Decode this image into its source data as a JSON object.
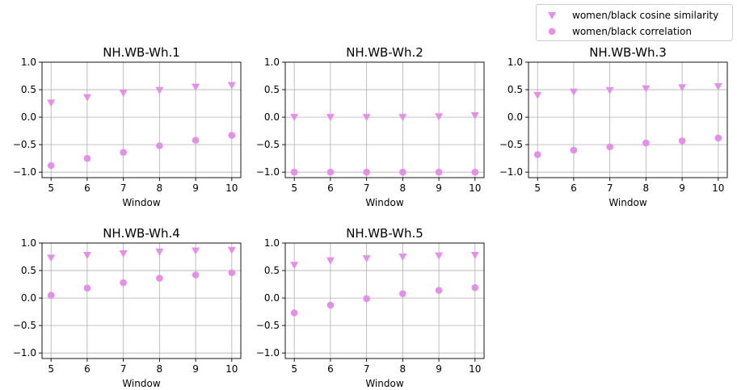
{
  "colors": {
    "marker": "#e58fe8",
    "grid": "#b0b0b0",
    "axis": "#000000"
  },
  "legend": {
    "entries": [
      {
        "label": "women/black cosine similarity",
        "marker": "triangle-down"
      },
      {
        "label": "women/black correlation",
        "marker": "circle"
      }
    ]
  },
  "chart_data": [
    {
      "type": "scatter",
      "title": "NH.WB-Wh.1",
      "xlabel": "Window",
      "ylabel": "",
      "x": [
        5,
        6,
        7,
        8,
        9,
        10
      ],
      "xlim": [
        4.75,
        10.25
      ],
      "ylim": [
        -1.1,
        1.0
      ],
      "xticks": [
        "5",
        "6",
        "7",
        "8",
        "9",
        "10"
      ],
      "yticks": [
        "1.0",
        "0.5",
        "0.0",
        "−0.5",
        "−1.0"
      ],
      "grid": true,
      "series": [
        {
          "name": "women/black cosine similarity",
          "marker": "triangle-down",
          "values": [
            0.26,
            0.36,
            0.44,
            0.49,
            0.55,
            0.58
          ]
        },
        {
          "name": "women/black correlation",
          "marker": "circle",
          "values": [
            -0.88,
            -0.75,
            -0.64,
            -0.52,
            -0.42,
            -0.33
          ]
        }
      ]
    },
    {
      "type": "scatter",
      "title": "NH.WB-Wh.2",
      "xlabel": "Window",
      "ylabel": "",
      "x": [
        5,
        6,
        7,
        8,
        9,
        10
      ],
      "xlim": [
        4.75,
        10.25
      ],
      "ylim": [
        -1.1,
        1.0
      ],
      "xticks": [
        "5",
        "6",
        "7",
        "8",
        "9",
        "10"
      ],
      "yticks": [
        "1.0",
        "0.5",
        "0.0",
        "−0.5",
        "−1.0"
      ],
      "grid": true,
      "series": [
        {
          "name": "women/black cosine similarity",
          "marker": "triangle-down",
          "values": [
            0.0,
            0.0,
            0.0,
            0.0,
            0.01,
            0.03
          ]
        },
        {
          "name": "women/black correlation",
          "marker": "circle",
          "values": [
            -1.0,
            -1.0,
            -1.0,
            -1.0,
            -1.0,
            -1.0
          ]
        }
      ]
    },
    {
      "type": "scatter",
      "title": "NH.WB-Wh.3",
      "xlabel": "Window",
      "ylabel": "",
      "x": [
        5,
        6,
        7,
        8,
        9,
        10
      ],
      "xlim": [
        4.75,
        10.25
      ],
      "ylim": [
        -1.1,
        1.0
      ],
      "xticks": [
        "5",
        "6",
        "7",
        "8",
        "9",
        "10"
      ],
      "yticks": [
        "1.0",
        "0.5",
        "0.0",
        "−0.5",
        "−1.0"
      ],
      "grid": true,
      "series": [
        {
          "name": "women/black cosine similarity",
          "marker": "triangle-down",
          "values": [
            0.4,
            0.46,
            0.49,
            0.52,
            0.54,
            0.56
          ]
        },
        {
          "name": "women/black correlation",
          "marker": "circle",
          "values": [
            -0.68,
            -0.6,
            -0.54,
            -0.47,
            -0.43,
            -0.38
          ]
        }
      ]
    },
    {
      "type": "scatter",
      "title": "NH.WB-Wh.4",
      "xlabel": "Window",
      "ylabel": "",
      "x": [
        5,
        6,
        7,
        8,
        9,
        10
      ],
      "xlim": [
        4.75,
        10.25
      ],
      "ylim": [
        -1.1,
        1.0
      ],
      "xticks": [
        "5",
        "6",
        "7",
        "8",
        "9",
        "10"
      ],
      "yticks": [
        "1.0",
        "0.5",
        "0.0",
        "−0.5",
        "−1.0"
      ],
      "grid": true,
      "series": [
        {
          "name": "women/black cosine similarity",
          "marker": "triangle-down",
          "values": [
            0.73,
            0.78,
            0.81,
            0.84,
            0.86,
            0.87
          ]
        },
        {
          "name": "women/black correlation",
          "marker": "circle",
          "values": [
            0.05,
            0.18,
            0.28,
            0.36,
            0.42,
            0.46
          ]
        }
      ]
    },
    {
      "type": "scatter",
      "title": "NH.WB-Wh.5",
      "xlabel": "Window",
      "ylabel": "",
      "x": [
        5,
        6,
        7,
        8,
        9,
        10
      ],
      "xlim": [
        4.75,
        10.25
      ],
      "ylim": [
        -1.1,
        1.0
      ],
      "xticks": [
        "5",
        "6",
        "7",
        "8",
        "9",
        "10"
      ],
      "yticks": [
        "1.0",
        "0.5",
        "0.0",
        "−0.5",
        "−1.0"
      ],
      "grid": true,
      "series": [
        {
          "name": "women/black cosine similarity",
          "marker": "triangle-down",
          "values": [
            0.6,
            0.68,
            0.72,
            0.75,
            0.77,
            0.78
          ]
        },
        {
          "name": "women/black correlation",
          "marker": "circle",
          "values": [
            -0.27,
            -0.13,
            -0.01,
            0.08,
            0.14,
            0.19
          ]
        }
      ]
    }
  ]
}
